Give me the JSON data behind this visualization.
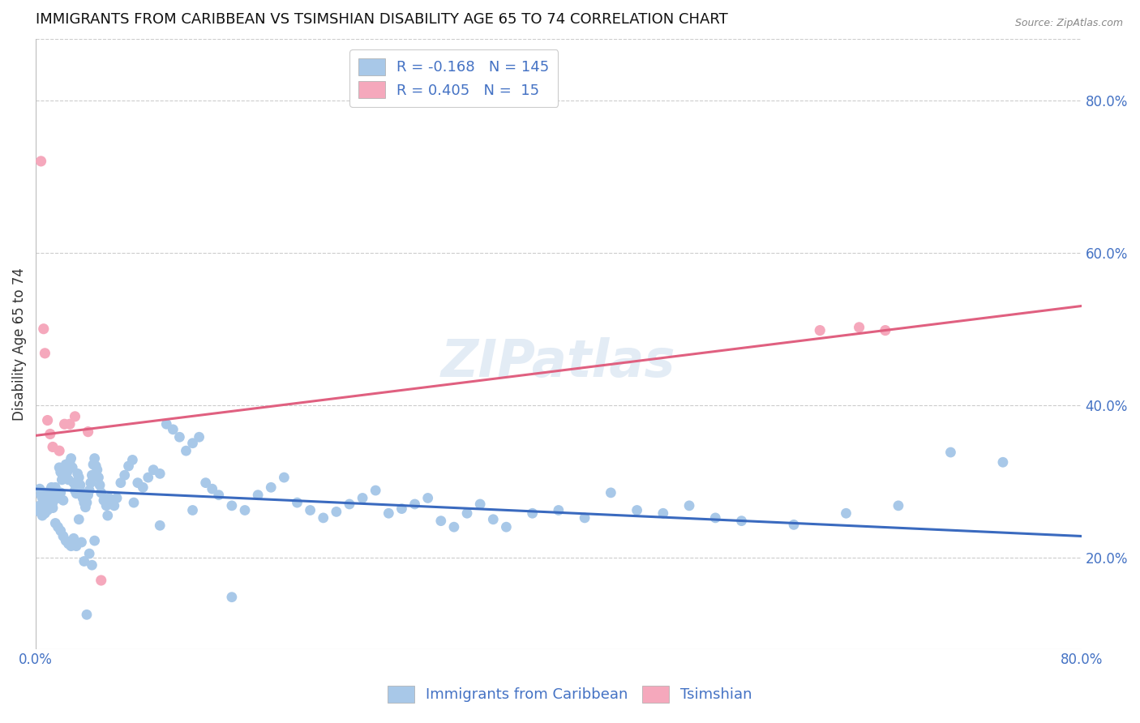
{
  "title": "IMMIGRANTS FROM CARIBBEAN VS TSIMSHIAN DISABILITY AGE 65 TO 74 CORRELATION CHART",
  "source": "Source: ZipAtlas.com",
  "ylabel": "Disability Age 65 to 74",
  "xlim": [
    0.0,
    0.8
  ],
  "ylim": [
    0.08,
    0.88
  ],
  "x_ticks": [
    0.0,
    0.1,
    0.2,
    0.3,
    0.4,
    0.5,
    0.6,
    0.7,
    0.8
  ],
  "y_ticks_right": [
    0.2,
    0.4,
    0.6,
    0.8
  ],
  "y_tick_labels_right": [
    "20.0%",
    "40.0%",
    "60.0%",
    "80.0%"
  ],
  "blue_R": -0.168,
  "blue_N": 145,
  "pink_R": 0.405,
  "pink_N": 15,
  "blue_color": "#a8c8e8",
  "pink_color": "#f5a8bc",
  "blue_line_color": "#3a6abf",
  "pink_line_color": "#e06080",
  "watermark": "ZIPatlas",
  "legend_label_blue": "Immigrants from Caribbean",
  "legend_label_pink": "Tsimshian",
  "blue_line_y_start": 0.29,
  "blue_line_y_end": 0.228,
  "pink_line_y_start": 0.36,
  "pink_line_y_end": 0.53,
  "blue_scatter_x": [
    0.003,
    0.004,
    0.005,
    0.006,
    0.007,
    0.008,
    0.009,
    0.01,
    0.011,
    0.012,
    0.013,
    0.014,
    0.015,
    0.016,
    0.017,
    0.018,
    0.019,
    0.02,
    0.021,
    0.022,
    0.023,
    0.024,
    0.025,
    0.026,
    0.027,
    0.028,
    0.029,
    0.03,
    0.031,
    0.032,
    0.033,
    0.034,
    0.035,
    0.036,
    0.037,
    0.038,
    0.039,
    0.04,
    0.041,
    0.042,
    0.043,
    0.044,
    0.045,
    0.046,
    0.047,
    0.048,
    0.049,
    0.05,
    0.052,
    0.054,
    0.056,
    0.058,
    0.06,
    0.062,
    0.065,
    0.068,
    0.071,
    0.074,
    0.078,
    0.082,
    0.086,
    0.09,
    0.095,
    0.1,
    0.105,
    0.11,
    0.115,
    0.12,
    0.125,
    0.13,
    0.135,
    0.14,
    0.15,
    0.16,
    0.17,
    0.18,
    0.19,
    0.2,
    0.21,
    0.22,
    0.23,
    0.24,
    0.25,
    0.26,
    0.27,
    0.28,
    0.29,
    0.3,
    0.31,
    0.32,
    0.33,
    0.34,
    0.35,
    0.36,
    0.38,
    0.4,
    0.42,
    0.44,
    0.46,
    0.48,
    0.5,
    0.52,
    0.54,
    0.58,
    0.62,
    0.66,
    0.7,
    0.74,
    0.003,
    0.005,
    0.007,
    0.009,
    0.011,
    0.013,
    0.015,
    0.017,
    0.019,
    0.021,
    0.003,
    0.005,
    0.007,
    0.009,
    0.011,
    0.013,
    0.015,
    0.017,
    0.019,
    0.021,
    0.023,
    0.025,
    0.027,
    0.029,
    0.031,
    0.033,
    0.035,
    0.037,
    0.039,
    0.041,
    0.043,
    0.045,
    0.055,
    0.075,
    0.095,
    0.12,
    0.15
  ],
  "blue_scatter_y": [
    0.29,
    0.282,
    0.278,
    0.27,
    0.268,
    0.285,
    0.272,
    0.278,
    0.274,
    0.292,
    0.285,
    0.288,
    0.292,
    0.282,
    0.278,
    0.318,
    0.312,
    0.302,
    0.308,
    0.318,
    0.322,
    0.312,
    0.302,
    0.325,
    0.33,
    0.318,
    0.298,
    0.288,
    0.284,
    0.31,
    0.305,
    0.295,
    0.285,
    0.278,
    0.272,
    0.266,
    0.272,
    0.282,
    0.288,
    0.298,
    0.308,
    0.322,
    0.33,
    0.32,
    0.315,
    0.305,
    0.295,
    0.285,
    0.275,
    0.268,
    0.278,
    0.272,
    0.268,
    0.278,
    0.298,
    0.308,
    0.32,
    0.328,
    0.298,
    0.292,
    0.305,
    0.315,
    0.31,
    0.375,
    0.368,
    0.358,
    0.34,
    0.35,
    0.358,
    0.298,
    0.29,
    0.282,
    0.268,
    0.262,
    0.282,
    0.292,
    0.305,
    0.272,
    0.262,
    0.252,
    0.26,
    0.27,
    0.278,
    0.288,
    0.258,
    0.264,
    0.27,
    0.278,
    0.248,
    0.24,
    0.258,
    0.27,
    0.25,
    0.24,
    0.258,
    0.262,
    0.252,
    0.285,
    0.262,
    0.258,
    0.268,
    0.252,
    0.248,
    0.243,
    0.258,
    0.268,
    0.338,
    0.325,
    0.26,
    0.255,
    0.258,
    0.262,
    0.268,
    0.272,
    0.278,
    0.282,
    0.285,
    0.275,
    0.268,
    0.258,
    0.28,
    0.275,
    0.27,
    0.265,
    0.245,
    0.24,
    0.235,
    0.228,
    0.222,
    0.218,
    0.215,
    0.225,
    0.215,
    0.25,
    0.22,
    0.195,
    0.125,
    0.205,
    0.19,
    0.222,
    0.255,
    0.272,
    0.242,
    0.262,
    0.148
  ],
  "pink_scatter_x": [
    0.004,
    0.006,
    0.007,
    0.009,
    0.011,
    0.013,
    0.018,
    0.022,
    0.026,
    0.03,
    0.04,
    0.05,
    0.6,
    0.63,
    0.65
  ],
  "pink_scatter_y": [
    0.72,
    0.5,
    0.468,
    0.38,
    0.362,
    0.345,
    0.34,
    0.375,
    0.375,
    0.385,
    0.365,
    0.17,
    0.498,
    0.502,
    0.498
  ]
}
